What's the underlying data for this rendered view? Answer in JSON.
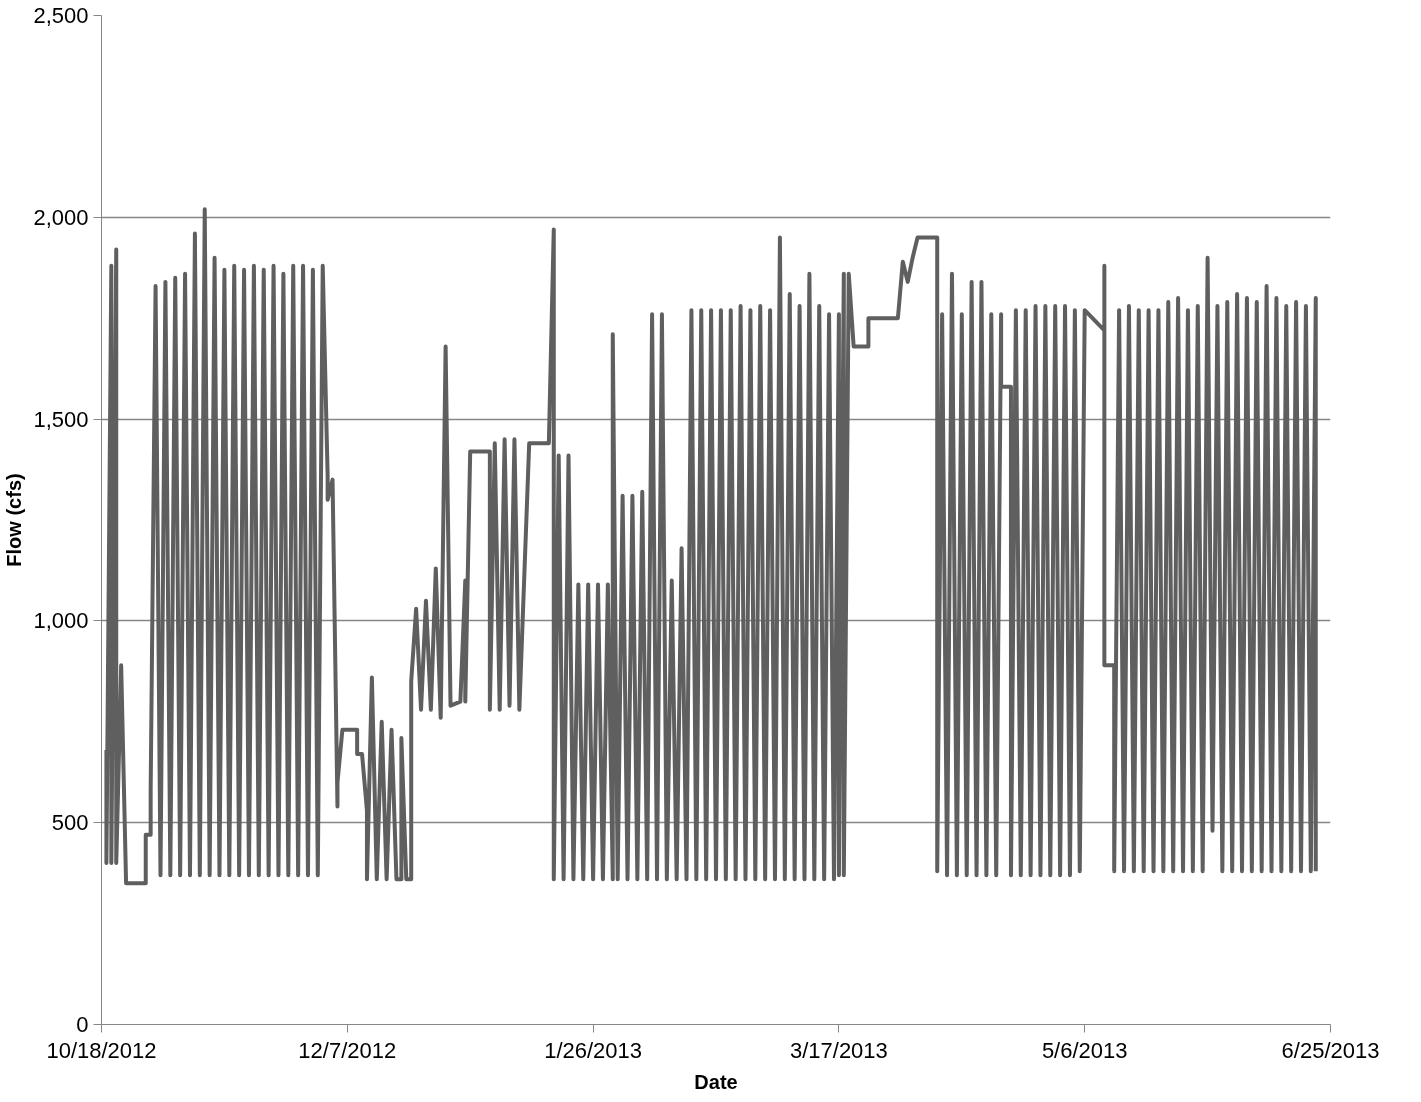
{
  "chart_data": {
    "type": "line",
    "xlabel": "Date",
    "ylabel": "Flow (cfs)",
    "xlim": [
      "2012-10-18",
      "2013-06-25"
    ],
    "xticks": [
      {
        "value": "2012-10-18",
        "label": "10/18/2012"
      },
      {
        "value": "2012-12-07",
        "label": "12/7/2012"
      },
      {
        "value": "2013-01-26",
        "label": "1/26/2013"
      },
      {
        "value": "2013-03-17",
        "label": "3/17/2013"
      },
      {
        "value": "2013-05-06",
        "label": "5/6/2013"
      },
      {
        "value": "2013-06-25",
        "label": "6/25/2013"
      }
    ],
    "ylim": [
      0,
      2500
    ],
    "yticks": [
      0,
      500,
      {
        "value": 1000,
        "label": "1,000"
      },
      {
        "value": 1500,
        "label": "1,500"
      },
      {
        "value": 2000,
        "label": "2,000"
      },
      {
        "value": 2500,
        "label": "2,500"
      }
    ],
    "grid": "y",
    "line_style": "solid",
    "series": [
      {
        "color": "#5f5f5f",
        "x": [
          "2012-10-19",
          "2012-10-19",
          "2012-10-20",
          "2012-10-20",
          "2012-10-21",
          "2012-10-21",
          "2012-10-22",
          "2012-10-23",
          "2012-10-27",
          "2012-10-27",
          "2012-10-28",
          "2012-10-28",
          "2012-10-29",
          "2012-10-30",
          "2012-10-31",
          "2012-11-01",
          "2012-11-02",
          "2012-11-03",
          "2012-11-04",
          "2012-11-05",
          "2012-11-06",
          "2012-11-07",
          "2012-11-08",
          "2012-11-09",
          "2012-11-10",
          "2012-11-11",
          "2012-11-12",
          "2012-11-13",
          "2012-11-14",
          "2012-11-15",
          "2012-11-16",
          "2012-11-17",
          "2012-11-18",
          "2012-11-19",
          "2012-11-20",
          "2012-11-21",
          "2012-11-22",
          "2012-11-23",
          "2012-11-24",
          "2012-11-25",
          "2012-11-26",
          "2012-11-27",
          "2012-11-28",
          "2012-11-29",
          "2012-11-30",
          "2012-12-01",
          "2012-12-02",
          "2012-12-03",
          "2012-12-03",
          "2012-12-04",
          "2012-12-05",
          "2012-12-05",
          "2012-12-06",
          "2012-12-09",
          "2012-12-09",
          "2012-12-10",
          "2012-12-11",
          "2012-12-11",
          "2012-12-12",
          "2012-12-13",
          "2012-12-14",
          "2012-12-15",
          "2012-12-16",
          "2012-12-17",
          "2012-12-18",
          "2012-12-18",
          "2012-12-19",
          "2012-12-20",
          "2012-12-20",
          "2012-12-21",
          "2012-12-22",
          "2012-12-23",
          "2012-12-24",
          "2012-12-25",
          "2012-12-26",
          "2012-12-27",
          "2012-12-28",
          "2012-12-30",
          "2012-12-31",
          "2012-12-31",
          "2013-01-01",
          "2013-01-05",
          "2013-01-05",
          "2013-01-06",
          "2013-01-07",
          "2013-01-08",
          "2013-01-09",
          "2013-01-10",
          "2013-01-11",
          "2013-01-13",
          "2013-01-17",
          "2013-01-18",
          "2013-01-18",
          "2013-01-19",
          "2013-01-20",
          "2013-01-21",
          "2013-01-22",
          "2013-01-23",
          "2013-01-24",
          "2013-01-25",
          "2013-01-26",
          "2013-01-27",
          "2013-01-28",
          "2013-01-29",
          "2013-01-30",
          "2013-01-30",
          "2013-01-31",
          "2013-02-01",
          "2013-02-02",
          "2013-02-03",
          "2013-02-04",
          "2013-02-05",
          "2013-02-06",
          "2013-02-07",
          "2013-02-08",
          "2013-02-09",
          "2013-02-10",
          "2013-02-11",
          "2013-02-12",
          "2013-02-13",
          "2013-02-14",
          "2013-02-15",
          "2013-02-16",
          "2013-02-17",
          "2013-02-18",
          "2013-02-19",
          "2013-02-20",
          "2013-02-21",
          "2013-02-22",
          "2013-02-23",
          "2013-02-24",
          "2013-02-25",
          "2013-02-26",
          "2013-02-27",
          "2013-02-28",
          "2013-03-01",
          "2013-03-02",
          "2013-03-03",
          "2013-03-04",
          "2013-03-05",
          "2013-03-06",
          "2013-03-07",
          "2013-03-08",
          "2013-03-09",
          "2013-03-10",
          "2013-03-11",
          "2013-03-12",
          "2013-03-13",
          "2013-03-14",
          "2013-03-15",
          "2013-03-16",
          "2013-03-17",
          "2013-03-17",
          "2013-03-18",
          "2013-03-18",
          "2013-03-19",
          "2013-03-20",
          "2013-03-23",
          "2013-03-23",
          "2013-03-29",
          "2013-03-30",
          "2013-03-31",
          "2013-04-01",
          "2013-04-02",
          "2013-04-06",
          "2013-04-06",
          "2013-04-07",
          "2013-04-08",
          "2013-04-09",
          "2013-04-10",
          "2013-04-11",
          "2013-04-12",
          "2013-04-13",
          "2013-04-14",
          "2013-04-15",
          "2013-04-16",
          "2013-04-17",
          "2013-04-18",
          "2013-04-19",
          "2013-04-19",
          "2013-04-21",
          "2013-04-21",
          "2013-04-22",
          "2013-04-23",
          "2013-04-24",
          "2013-04-25",
          "2013-04-26",
          "2013-04-27",
          "2013-04-28",
          "2013-04-29",
          "2013-04-30",
          "2013-05-01",
          "2013-05-02",
          "2013-05-03",
          "2013-05-04",
          "2013-05-05",
          "2013-05-06",
          "2013-05-10",
          "2013-05-10",
          "2013-05-10",
          "2013-05-12",
          "2013-05-12",
          "2013-05-13",
          "2013-05-14",
          "2013-05-15",
          "2013-05-16",
          "2013-05-17",
          "2013-05-18",
          "2013-05-19",
          "2013-05-20",
          "2013-05-21",
          "2013-05-22",
          "2013-05-23",
          "2013-05-24",
          "2013-05-25",
          "2013-05-26",
          "2013-05-27",
          "2013-05-28",
          "2013-05-29",
          "2013-05-30",
          "2013-05-31",
          "2013-06-01",
          "2013-06-02",
          "2013-06-03",
          "2013-06-04",
          "2013-06-05",
          "2013-06-06",
          "2013-06-07",
          "2013-06-08",
          "2013-06-09",
          "2013-06-10",
          "2013-06-11",
          "2013-06-12",
          "2013-06-13",
          "2013-06-14",
          "2013-06-15",
          "2013-06-16",
          "2013-06-17",
          "2013-06-18",
          "2013-06-19",
          "2013-06-20",
          "2013-06-21",
          "2013-06-22",
          "2013-06-22"
        ],
        "values": [
          680,
          400,
          1880,
          400,
          1920,
          400,
          890,
          350,
          350,
          470,
          470,
          580,
          1830,
          370,
          1840,
          370,
          1850,
          370,
          1860,
          370,
          1960,
          370,
          2020,
          370,
          1900,
          370,
          1870,
          370,
          1880,
          370,
          1870,
          370,
          1880,
          370,
          1870,
          370,
          1880,
          370,
          1860,
          370,
          1880,
          370,
          1880,
          370,
          1870,
          370,
          1880,
          1360,
          1300,
          1350,
          540,
          600,
          730,
          730,
          670,
          670,
          530,
          360,
          860,
          360,
          750,
          360,
          730,
          360,
          360,
          710,
          360,
          360,
          850,
          1030,
          780,
          1050,
          780,
          1130,
          760,
          1680,
          790,
          800,
          1100,
          800,
          1420,
          1420,
          780,
          1440,
          780,
          1450,
          790,
          1450,
          780,
          1440,
          1440,
          1970,
          360,
          1410,
          360,
          1410,
          360,
          1090,
          360,
          1090,
          360,
          1090,
          360,
          1090,
          360,
          1710,
          360,
          1310,
          360,
          1310,
          360,
          1320,
          360,
          1760,
          360,
          1760,
          360,
          1100,
          360,
          1180,
          360,
          1770,
          360,
          1770,
          360,
          1770,
          360,
          1770,
          360,
          1770,
          360,
          1780,
          360,
          1770,
          360,
          1780,
          360,
          1770,
          360,
          1950,
          360,
          1810,
          360,
          1780,
          360,
          1860,
          360,
          1780,
          360,
          1760,
          360,
          1760,
          370,
          1860,
          370,
          1860,
          1680,
          1680,
          1750,
          1750,
          1890,
          1840,
          1900,
          1950,
          1950,
          380,
          1760,
          370,
          1860,
          370,
          1760,
          370,
          1840,
          370,
          1840,
          370,
          1760,
          370,
          1760,
          1580,
          1580,
          370,
          1770,
          370,
          1770,
          370,
          1780,
          370,
          1780,
          370,
          1780,
          370,
          1780,
          370,
          1770,
          380,
          1770,
          1720,
          1880,
          890,
          890,
          380,
          1770,
          380,
          1780,
          380,
          1770,
          380,
          1770,
          380,
          1770,
          380,
          1790,
          380,
          1800,
          380,
          1770,
          380,
          1780,
          380,
          1900,
          480,
          1780,
          380,
          1790,
          380,
          1810,
          380,
          1800,
          380,
          1790,
          380,
          1830,
          380,
          1800,
          380,
          1780,
          380,
          1790,
          380,
          1780,
          380,
          1800,
          380
        ]
      }
    ]
  }
}
